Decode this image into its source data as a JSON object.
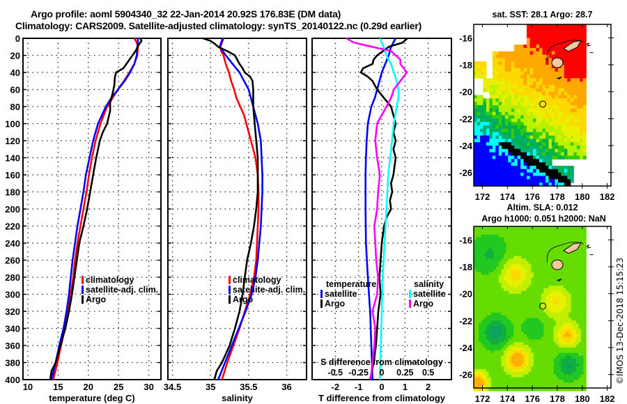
{
  "figure": {
    "title_line1": "Argo profile: aoml 5904340_32 22-Jan-2014 20.92S 176.83E (DM data)",
    "title_line2": "Climatology: CARS2009. Satellite-adjusted climatology: synTS_20140122.nc (0.29d earlier)",
    "credit": "©IMOS 13-Dec-2018 15:15:23",
    "colors": {
      "climatology": "#ff0000",
      "satellite_adj": "#0000ff",
      "argo": "#000000",
      "s_satellite": "#00ffff",
      "s_argo": "#ff00ff"
    }
  },
  "chart_data": [
    {
      "id": "temperature",
      "type": "line",
      "title": "",
      "xlabel": "temperature (deg C)",
      "ylabel": "",
      "xlim": [
        9.2,
        32
      ],
      "ylim": [
        400,
        0
      ],
      "xticks": [
        10,
        15,
        20,
        25,
        30
      ],
      "yticks": [
        0,
        20,
        40,
        60,
        80,
        100,
        120,
        140,
        160,
        180,
        200,
        220,
        240,
        260,
        280,
        300,
        320,
        340,
        360,
        380,
        400
      ],
      "grid": true,
      "legend_position": "center-right",
      "legend": [
        "climatology",
        "satellite-adj. clim.",
        "Argo"
      ],
      "series": [
        {
          "name": "climatology",
          "color": "#ff0000",
          "depth": [
            0,
            5,
            10,
            20,
            30,
            40,
            50,
            60,
            70,
            80,
            100,
            120,
            140,
            160,
            180,
            200,
            220,
            240,
            260,
            280,
            300,
            320,
            340,
            360,
            380,
            400
          ],
          "values": [
            27.6,
            28.0,
            28.2,
            28.1,
            27.6,
            26.8,
            25.9,
            24.9,
            24.0,
            23.1,
            22.0,
            21.2,
            20.6,
            20.1,
            19.7,
            19.2,
            18.7,
            18.2,
            17.8,
            17.5,
            17.1,
            16.6,
            16.1,
            15.5,
            14.9,
            14.2
          ]
        },
        {
          "name": "satellite-adj. clim.",
          "color": "#0000ff",
          "depth": [
            0,
            5,
            10,
            20,
            30,
            40,
            50,
            60,
            70,
            80,
            100,
            120,
            140,
            160,
            180,
            200,
            220,
            240,
            260,
            280,
            300,
            320,
            340,
            360,
            380,
            400
          ],
          "values": [
            28.2,
            28.2,
            28.1,
            28.0,
            27.6,
            26.9,
            26.0,
            24.9,
            23.8,
            22.9,
            21.6,
            20.8,
            20.2,
            19.6,
            19.2,
            18.7,
            18.2,
            17.8,
            17.4,
            17.1,
            16.8,
            16.4,
            15.9,
            15.2,
            14.6,
            13.9
          ]
        },
        {
          "name": "Argo",
          "color": "#000000",
          "depth": [
            0,
            3,
            8,
            15,
            25,
            35,
            40,
            45,
            55,
            65,
            75,
            85,
            100,
            110,
            120,
            140,
            160,
            180,
            200,
            220,
            240,
            260,
            280,
            300,
            320,
            340,
            360,
            380,
            390,
            400
          ],
          "values": [
            28.6,
            28.8,
            28.3,
            27.8,
            26.8,
            25.8,
            24.6,
            24.4,
            24.3,
            24.0,
            23.6,
            23.6,
            23.1,
            22.4,
            21.9,
            21.3,
            20.8,
            20.3,
            19.8,
            19.2,
            18.5,
            18.1,
            17.7,
            17.3,
            16.8,
            16.2,
            15.4,
            14.6,
            13.9,
            13.7
          ]
        }
      ]
    },
    {
      "id": "salinity",
      "type": "line",
      "title": "",
      "xlabel": "salinity",
      "ylabel": "",
      "xlim": [
        34.44,
        36.26
      ],
      "ylim": [
        400,
        0
      ],
      "xticks": [
        34.5,
        35,
        35.5,
        36
      ],
      "grid": true,
      "legend_position": "center-right",
      "legend": [
        "climatology",
        "satellite-adj. clim.",
        "Argo"
      ],
      "series": [
        {
          "name": "climatology",
          "color": "#ff0000",
          "depth": [
            0,
            5,
            10,
            15,
            20,
            30,
            40,
            50,
            60,
            70,
            80,
            90,
            100,
            120,
            140,
            160,
            180,
            200,
            220,
            240,
            260,
            280,
            300,
            320,
            340,
            360,
            380,
            400
          ],
          "values": [
            35.17,
            35.15,
            35.13,
            35.14,
            35.17,
            35.2,
            35.24,
            35.27,
            35.31,
            35.34,
            35.39,
            35.44,
            35.47,
            35.53,
            35.59,
            35.62,
            35.63,
            35.63,
            35.62,
            35.61,
            35.6,
            35.57,
            35.52,
            35.45,
            35.38,
            35.3,
            35.22,
            35.15
          ]
        },
        {
          "name": "satellite-adj. clim.",
          "color": "#0000ff",
          "depth": [
            0,
            5,
            10,
            15,
            20,
            30,
            40,
            50,
            60,
            70,
            80,
            90,
            100,
            120,
            140,
            160,
            180,
            200,
            220,
            240,
            260,
            280,
            300,
            320,
            340,
            360,
            380,
            400
          ],
          "values": [
            35.16,
            35.14,
            35.12,
            35.16,
            35.2,
            35.29,
            35.38,
            35.44,
            35.5,
            35.53,
            35.56,
            35.59,
            35.62,
            35.66,
            35.67,
            35.68,
            35.68,
            35.67,
            35.66,
            35.64,
            35.62,
            35.59,
            35.54,
            35.46,
            35.37,
            35.28,
            35.19,
            35.1
          ]
        },
        {
          "name": "Argo",
          "color": "#000000",
          "depth": [
            0,
            3,
            6,
            10,
            15,
            20,
            25,
            30,
            35,
            40,
            45,
            50,
            60,
            80,
            100,
            120,
            140,
            160,
            180,
            200,
            220,
            240,
            260,
            280,
            300,
            320,
            340,
            360,
            380,
            390,
            400
          ],
          "values": [
            34.9,
            35.0,
            35.05,
            35.1,
            35.22,
            35.32,
            35.35,
            35.38,
            35.42,
            35.45,
            35.52,
            35.55,
            35.56,
            35.56,
            35.58,
            35.6,
            35.62,
            35.62,
            35.62,
            35.6,
            35.57,
            35.53,
            35.48,
            35.45,
            35.42,
            35.38,
            35.32,
            35.25,
            35.15,
            35.08,
            35.05
          ]
        }
      ]
    },
    {
      "id": "difference",
      "type": "line",
      "title": "",
      "xlabel": "T difference from climatology",
      "x2label": "S difference from climatology",
      "ylabel": "",
      "xlim": [
        -3,
        3
      ],
      "x2lim": [
        -0.75,
        0.75
      ],
      "ylim": [
        400,
        0
      ],
      "xticks": [
        -2,
        -1,
        0,
        1,
        2
      ],
      "x2ticks": [
        -0.5,
        -0.25,
        0,
        0.25,
        0.5
      ],
      "x2ticklabels": [
        "-0.5",
        "-0.25",
        "0",
        "0.25",
        "0.5"
      ],
      "grid": true,
      "legend_position": "center",
      "legend_groups": [
        {
          "title": "temperature",
          "entries": [
            "satellite",
            "Argo"
          ]
        },
        {
          "title": "salinity",
          "entries": [
            "satellite",
            "Argo"
          ]
        }
      ],
      "series": [
        {
          "name": "temperature satellite",
          "axis": "T",
          "color": "#0000ff",
          "depth": [
            0,
            10,
            20,
            30,
            40,
            50,
            60,
            70,
            80,
            100,
            120,
            140,
            160,
            200,
            240,
            280,
            320,
            360,
            400
          ],
          "values": [
            0.6,
            0.4,
            0.3,
            0.15,
            0.0,
            -0.1,
            -0.2,
            -0.3,
            -0.45,
            -0.6,
            -0.65,
            -0.68,
            -0.7,
            -0.7,
            -0.68,
            -0.6,
            -0.5,
            -0.45,
            -0.4
          ]
        },
        {
          "name": "temperature Argo",
          "axis": "T",
          "color": "#000000",
          "depth": [
            0,
            5,
            10,
            15,
            20,
            25,
            30,
            35,
            40,
            45,
            50,
            55,
            60,
            70,
            80,
            90,
            100,
            110,
            120,
            130,
            140,
            150,
            160,
            170,
            180,
            190,
            200,
            210,
            220,
            240,
            260,
            280,
            300,
            320,
            340,
            360,
            380,
            400
          ],
          "values": [
            1.1,
            0.9,
            0.3,
            0.05,
            -0.2,
            -0.35,
            -0.4,
            -0.8,
            -0.9,
            -0.6,
            -0.4,
            -0.3,
            -0.2,
            0.1,
            0.4,
            0.5,
            0.6,
            0.5,
            0.6,
            0.5,
            0.6,
            0.55,
            0.5,
            0.4,
            0.45,
            0.35,
            0.4,
            0.2,
            0.1,
            0.0,
            -0.05,
            -0.1,
            -0.05,
            -0.15,
            -0.2,
            -0.25,
            -0.35,
            -0.5
          ]
        },
        {
          "name": "salinity satellite",
          "axis": "S",
          "color": "#00ffff",
          "depth": [
            0,
            10,
            20,
            30,
            40,
            50,
            60,
            70,
            80,
            100,
            120,
            140,
            160,
            200,
            240,
            280,
            320,
            360,
            400
          ],
          "values": [
            -0.02,
            0.02,
            0.05,
            0.1,
            0.13,
            0.16,
            0.18,
            0.18,
            0.16,
            0.13,
            0.11,
            0.09,
            0.07,
            0.05,
            0.03,
            0.01,
            0.0,
            -0.01,
            -0.02
          ]
        },
        {
          "name": "salinity Argo",
          "axis": "S",
          "color": "#ff00ff",
          "depth": [
            0,
            5,
            10,
            15,
            20,
            25,
            30,
            40,
            50,
            60,
            70,
            80,
            100,
            120,
            140,
            160,
            180,
            200,
            220,
            240,
            260,
            280,
            300,
            320,
            340,
            360,
            380,
            400
          ],
          "values": [
            -0.38,
            -0.3,
            -0.1,
            0.1,
            0.15,
            0.2,
            0.2,
            0.27,
            0.2,
            0.13,
            0.1,
            0.05,
            -0.05,
            -0.07,
            -0.05,
            -0.02,
            -0.04,
            -0.05,
            -0.08,
            -0.07,
            -0.06,
            -0.04,
            -0.05,
            -0.1,
            -0.07,
            -0.08,
            -0.1,
            -0.12
          ]
        }
      ]
    },
    {
      "id": "sst-map",
      "type": "heatmap",
      "title": "sat. SST: 28.1 Argo: 28.7",
      "xlim": [
        171.3,
        182.3
      ],
      "ylim": [
        -27,
        -15
      ],
      "xticks": [
        172,
        174,
        176,
        178,
        180,
        182
      ],
      "yticks": [
        -16,
        -18,
        -20,
        -22,
        -24,
        -26
      ],
      "yticklabels": [
        "-16",
        "-18",
        "-20",
        "-22",
        "-24",
        "-26"
      ],
      "float_position": {
        "lon": 176.83,
        "lat": -20.92
      },
      "data_east_limit": 180.2
    },
    {
      "id": "sla-map",
      "type": "heatmap",
      "title": "Altim. SLA: 0.012",
      "subtitle": "Argo h1000: 0.051 h2000: NaN",
      "xlim": [
        171.3,
        182.3
      ],
      "ylim": [
        -27,
        -15
      ],
      "xticks": [
        172,
        174,
        176,
        178,
        180,
        182
      ],
      "yticks": [
        -16,
        -18,
        -20,
        -22,
        -24,
        -26
      ],
      "yticklabels": [
        "-16",
        "-18",
        "-20",
        "-22",
        "-24",
        "-26"
      ],
      "float_position": {
        "lon": 176.83,
        "lat": -20.92
      },
      "data_east_limit": 180.2
    }
  ]
}
